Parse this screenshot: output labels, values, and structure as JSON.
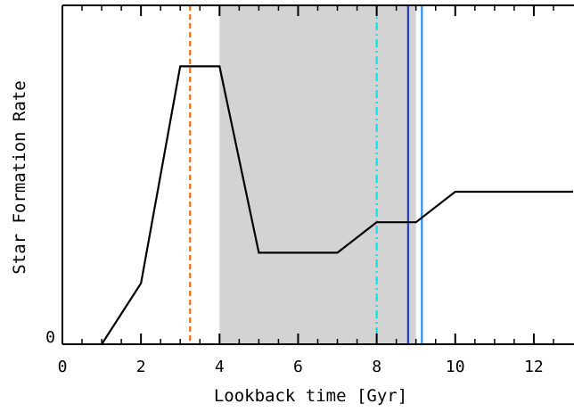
{
  "chart_data": {
    "type": "line",
    "xlabel": "Lookback time [Gyr]",
    "ylabel": "Star Formation Rate",
    "xlim": [
      0,
      13
    ],
    "ylim": [
      0,
      1
    ],
    "x_ticks": [
      "0",
      "2",
      "4",
      "6",
      "8",
      "10",
      "12"
    ],
    "y_ticks": [
      "0"
    ],
    "grid": false,
    "series": [
      {
        "x": [
          1.0,
          2.0,
          3.0,
          4.0,
          5.0,
          7.0,
          8.0,
          9.0,
          10.0,
          13.0
        ],
        "y": [
          0.0,
          0.18,
          0.82,
          0.82,
          0.27,
          0.27,
          0.36,
          0.36,
          0.45,
          0.45
        ],
        "color": "#000000"
      }
    ],
    "shaded_region": {
      "x": [
        4.0,
        9.0
      ],
      "color": "#d3d3d3"
    },
    "vlines": [
      {
        "x": 3.25,
        "color": "#ff6a00",
        "style": "dashed"
      },
      {
        "x": 8.0,
        "color": "#00e5ee",
        "style": "dashdot"
      },
      {
        "x": 8.8,
        "color": "#1c3fd8",
        "style": "solid"
      },
      {
        "x": 9.15,
        "color": "#1e90ff",
        "style": "solid"
      }
    ]
  }
}
